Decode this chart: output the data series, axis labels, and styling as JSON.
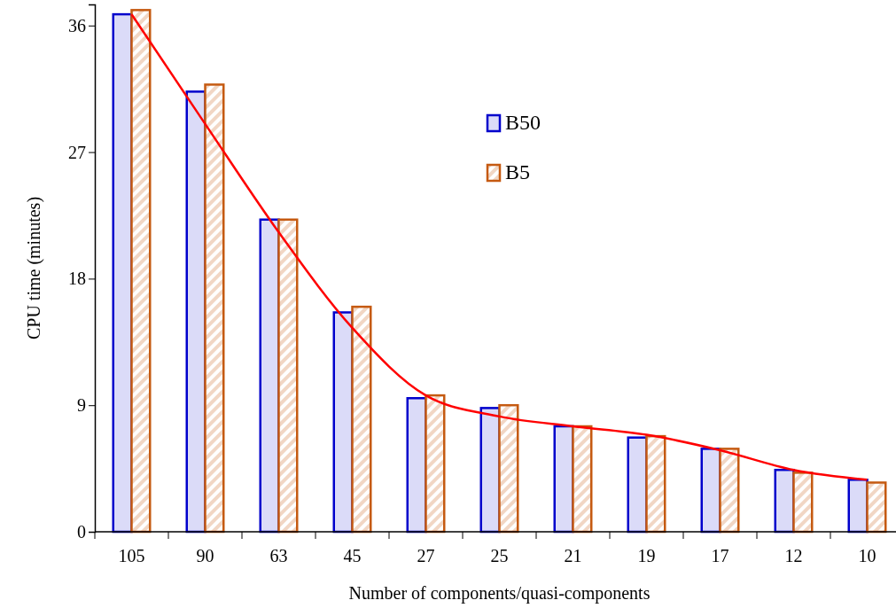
{
  "chart_data": {
    "type": "bar",
    "xlabel": "Number of components/quasi-components",
    "ylabel": "CPU time (minutes)",
    "categories": [
      "105",
      "90",
      "63",
      "45",
      "27",
      "25",
      "21",
      "19",
      "17",
      "12",
      "10"
    ],
    "ylim": [
      0,
      37.5
    ],
    "yticks": [
      0,
      9,
      18,
      27,
      36
    ],
    "grid": false,
    "legend": "top",
    "series": [
      {
        "name": "B50",
        "color": "#0000cc",
        "values": [
          36.8,
          31.3,
          22.2,
          15.6,
          9.5,
          8.8,
          7.5,
          6.7,
          5.9,
          4.4,
          3.7
        ]
      },
      {
        "name": "B5",
        "color": "#c55a11",
        "values": [
          37.1,
          31.8,
          22.2,
          16.0,
          9.7,
          9.0,
          7.5,
          6.8,
          5.9,
          4.2,
          3.5
        ]
      },
      {
        "type": "line",
        "color": "#ff0000",
        "values": [
          36.8,
          29.0,
          21.3,
          14.5,
          9.7,
          8.2,
          7.5,
          6.9,
          5.8,
          4.4,
          3.7
        ]
      }
    ]
  }
}
